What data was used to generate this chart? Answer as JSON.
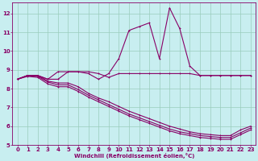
{
  "xlabel": "Windchill (Refroidissement éolien,°C)",
  "background_color": "#c8eef0",
  "grid_color": "#99ccbb",
  "line_color": "#880066",
  "xlim": [
    -0.5,
    23.5
  ],
  "ylim": [
    5,
    12.6
  ],
  "yticks": [
    5,
    6,
    7,
    8,
    9,
    10,
    11,
    12
  ],
  "xticks": [
    0,
    1,
    2,
    3,
    4,
    5,
    6,
    7,
    8,
    9,
    10,
    11,
    12,
    13,
    14,
    15,
    16,
    17,
    18,
    19,
    20,
    21,
    22,
    23
  ],
  "series_peak": [
    8.5,
    8.7,
    8.7,
    8.5,
    8.9,
    8.9,
    8.9,
    8.8,
    8.5,
    8.8,
    9.6,
    11.1,
    11.3,
    11.5,
    9.6,
    12.3,
    11.2,
    9.2,
    8.7,
    8.7,
    8.7,
    8.7,
    8.7,
    8.7
  ],
  "series_flat": [
    8.5,
    8.7,
    8.7,
    8.5,
    8.5,
    8.9,
    8.9,
    8.9,
    8.8,
    8.6,
    8.8,
    8.8,
    8.8,
    8.8,
    8.8,
    8.8,
    8.8,
    8.8,
    8.7,
    8.7,
    8.7,
    8.7,
    8.7,
    8.7
  ],
  "series_decline1": [
    8.5,
    8.7,
    8.7,
    8.4,
    8.3,
    8.3,
    8.1,
    7.75,
    7.5,
    7.3,
    7.05,
    6.8,
    6.6,
    6.4,
    6.2,
    6.0,
    5.85,
    5.7,
    5.6,
    5.55,
    5.5,
    5.5,
    5.8,
    6.0
  ],
  "series_decline2": [
    8.5,
    8.7,
    8.65,
    8.35,
    8.2,
    8.2,
    7.95,
    7.65,
    7.4,
    7.15,
    6.9,
    6.65,
    6.45,
    6.25,
    6.05,
    5.85,
    5.7,
    5.6,
    5.5,
    5.45,
    5.4,
    5.4,
    5.65,
    5.9
  ],
  "series_decline3": [
    8.5,
    8.65,
    8.6,
    8.25,
    8.1,
    8.1,
    7.85,
    7.55,
    7.3,
    7.05,
    6.8,
    6.55,
    6.35,
    6.15,
    5.95,
    5.75,
    5.6,
    5.5,
    5.4,
    5.35,
    5.3,
    5.3,
    5.55,
    5.8
  ]
}
